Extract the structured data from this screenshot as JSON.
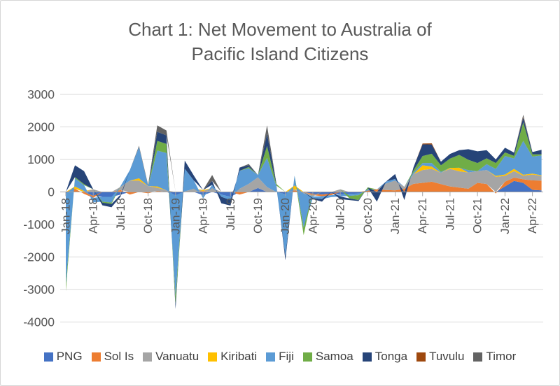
{
  "chart_data": {
    "type": "area",
    "stacked": true,
    "title_line1": "Chart 1: Net Movement to Australia of",
    "title_line2": "Pacific Island Citizens",
    "title_color": "#595959",
    "grid": true,
    "gridline_color": "#d9d9d9",
    "axis_line_color": "#a6a6a6",
    "axis_text_color": "#595959",
    "y_axis": {
      "min": -4000,
      "max": 3000,
      "step": 1000,
      "tick_labels": [
        "3000",
        "2000",
        "1000",
        "0",
        "-1000",
        "-2000",
        "-3000",
        "-4000"
      ]
    },
    "x_axis": {
      "label_interval": 3,
      "tick_labels": [
        "Jan-18",
        "Apr-18",
        "Jul-18",
        "Oct-18",
        "Jan-19",
        "Apr-19",
        "Jul-19",
        "Oct-19",
        "Jan-20",
        "Apr-20",
        "Jul-20",
        "Oct-20",
        "Jan-21",
        "Apr-21",
        "Jul-21",
        "Oct-21",
        "Jan-22",
        "Apr-22"
      ]
    },
    "months": [
      "Jan-18",
      "Feb-18",
      "Mar-18",
      "Apr-18",
      "May-18",
      "Jun-18",
      "Jul-18",
      "Aug-18",
      "Sep-18",
      "Oct-18",
      "Nov-18",
      "Dec-18",
      "Jan-19",
      "Feb-19",
      "Mar-19",
      "Apr-19",
      "May-19",
      "Jun-19",
      "Jul-19",
      "Aug-19",
      "Sep-19",
      "Oct-19",
      "Nov-19",
      "Dec-19",
      "Jan-20",
      "Feb-20",
      "Mar-20",
      "Apr-20",
      "May-20",
      "Jun-20",
      "Jul-20",
      "Aug-20",
      "Sep-20",
      "Oct-20",
      "Nov-20",
      "Dec-20",
      "Jan-21",
      "Feb-21",
      "Mar-21",
      "Apr-21",
      "May-21",
      "Jun-21",
      "Jul-21",
      "Aug-21",
      "Sep-21",
      "Oct-21",
      "Nov-21",
      "Dec-21",
      "Jan-22",
      "Feb-22",
      "Mar-22",
      "Apr-22",
      "May-22"
    ],
    "legend_position": "bottom",
    "series": [
      {
        "name": "PNG",
        "color": "#4472C4",
        "values": [
          -50,
          0,
          0,
          -120,
          -150,
          -150,
          -80,
          0,
          0,
          0,
          0,
          0,
          -100,
          0,
          0,
          -100,
          0,
          -80,
          -150,
          0,
          0,
          120,
          0,
          0,
          -70,
          0,
          0,
          -60,
          -80,
          -50,
          -80,
          -60,
          -50,
          0,
          0,
          0,
          0,
          0,
          0,
          0,
          0,
          0,
          0,
          0,
          0,
          0,
          0,
          0,
          170,
          340,
          280,
          65,
          50
        ]
      },
      {
        "name": "Sol Is",
        "color": "#ED7D31",
        "values": [
          0,
          100,
          -60,
          -60,
          0,
          0,
          60,
          -80,
          0,
          -40,
          30,
          0,
          0,
          0,
          0,
          30,
          0,
          0,
          0,
          -80,
          0,
          0,
          0,
          0,
          0,
          50,
          0,
          -40,
          -50,
          -50,
          0,
          0,
          0,
          40,
          80,
          60,
          50,
          100,
          250,
          280,
          315,
          240,
          170,
          135,
          100,
          280,
          245,
          -50,
          145,
          100,
          110,
          290,
          300
        ]
      },
      {
        "name": "Vanuatu",
        "color": "#A5A5A5",
        "values": [
          0,
          0,
          0,
          80,
          0,
          0,
          100,
          350,
          350,
          180,
          100,
          50,
          0,
          15,
          100,
          0,
          120,
          0,
          0,
          100,
          250,
          330,
          150,
          0,
          0,
          30,
          -50,
          -40,
          0,
          0,
          80,
          0,
          0,
          0,
          0,
          200,
          300,
          60,
          300,
          395,
          395,
          350,
          540,
          500,
          500,
          360,
          430,
          465,
          180,
          200,
          110,
          180,
          145
        ]
      },
      {
        "name": "Kiribati",
        "color": "#FFC000",
        "values": [
          0,
          70,
          30,
          0,
          0,
          0,
          0,
          0,
          70,
          0,
          40,
          0,
          0,
          0,
          0,
          30,
          0,
          0,
          0,
          0,
          0,
          0,
          0,
          0,
          0,
          120,
          0,
          0,
          0,
          0,
          0,
          0,
          0,
          0,
          0,
          0,
          0,
          0,
          0,
          145,
          70,
          0,
          30,
          110,
          0,
          0,
          0,
          30,
          40,
          70,
          30,
          30,
          20
        ]
      },
      {
        "name": "Fiji",
        "color": "#5B9BD5",
        "values": [
          -2800,
          250,
          180,
          -140,
          -150,
          -180,
          30,
          320,
          960,
          0,
          1100,
          1150,
          -3100,
          700,
          250,
          -100,
          100,
          -70,
          -100,
          550,
          480,
          70,
          900,
          200,
          -1900,
          300,
          -1050,
          -50,
          -90,
          -60,
          -60,
          -60,
          -50,
          40,
          0,
          60,
          50,
          0,
          50,
          70,
          110,
          30,
          0,
          0,
          70,
          0,
          180,
          215,
          570,
          320,
          1040,
          520,
          610
        ]
      },
      {
        "name": "Samoa",
        "color": "#70AD47",
        "values": [
          -200,
          35,
          30,
          0,
          -30,
          -40,
          0,
          0,
          0,
          0,
          300,
          280,
          -250,
          0,
          0,
          0,
          0,
          0,
          0,
          0,
          40,
          0,
          360,
          50,
          0,
          0,
          -230,
          0,
          0,
          0,
          0,
          -80,
          -150,
          60,
          0,
          0,
          0,
          0,
          60,
          215,
          285,
          200,
          285,
          395,
          320,
          250,
          180,
          180,
          110,
          80,
          570,
          70,
          30
        ]
      },
      {
        "name": "Tonga",
        "color": "#264478",
        "values": [
          0,
          365,
          400,
          0,
          -80,
          -100,
          -60,
          0,
          0,
          0,
          280,
          260,
          -150,
          250,
          150,
          0,
          120,
          -200,
          -170,
          100,
          50,
          0,
          380,
          50,
          -130,
          0,
          0,
          -30,
          -80,
          0,
          -80,
          -50,
          -30,
          0,
          -300,
          0,
          150,
          -250,
          100,
          360,
          285,
          110,
          145,
          145,
          325,
          360,
          250,
          110,
          145,
          100,
          145,
          70,
          140
        ]
      },
      {
        "name": "Tuvulu",
        "color": "#9E480E",
        "values": [
          0,
          0,
          0,
          0,
          0,
          0,
          0,
          0,
          0,
          0,
          0,
          0,
          0,
          0,
          0,
          0,
          0,
          0,
          0,
          0,
          0,
          0,
          0,
          0,
          0,
          0,
          0,
          0,
          0,
          0,
          0,
          0,
          0,
          0,
          0,
          0,
          0,
          0,
          0,
          25,
          35,
          0,
          0,
          0,
          0,
          0,
          0,
          0,
          0,
          0,
          20,
          0,
          0
        ]
      },
      {
        "name": "Timor",
        "color": "#636363",
        "values": [
          0,
          0,
          0,
          0,
          0,
          0,
          0,
          0,
          40,
          35,
          200,
          150,
          0,
          0,
          0,
          0,
          180,
          0,
          0,
          0,
          40,
          0,
          260,
          0,
          0,
          0,
          0,
          0,
          0,
          0,
          0,
          0,
          0,
          0,
          0,
          0,
          0,
          0,
          0,
          0,
          0,
          0,
          0,
          0,
          0,
          0,
          0,
          0,
          0,
          0,
          70,
          0,
          0
        ]
      }
    ]
  }
}
